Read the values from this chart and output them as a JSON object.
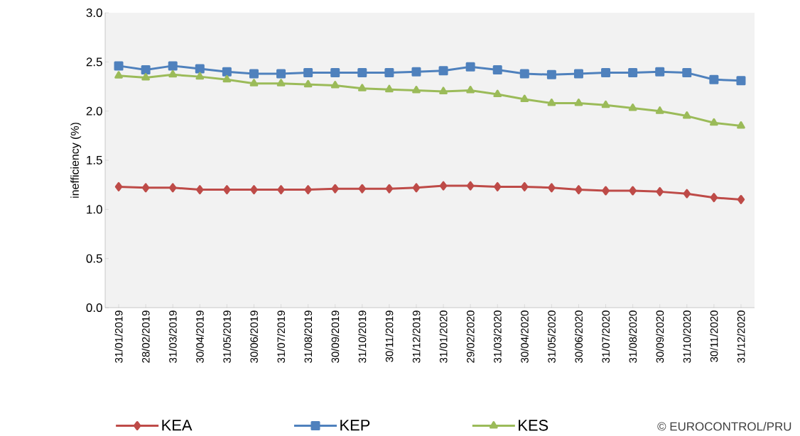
{
  "chart_data": {
    "type": "line",
    "ylabel": "inefficiency (%)",
    "categories": [
      "31/01/2019",
      "28/02/2019",
      "31/03/2019",
      "30/04/2019",
      "31/05/2019",
      "30/06/2019",
      "31/07/2019",
      "31/08/2019",
      "30/09/2019",
      "31/10/2019",
      "30/11/2019",
      "31/12/2019",
      "31/01/2020",
      "29/02/2020",
      "31/03/2020",
      "30/04/2020",
      "31/05/2020",
      "30/06/2020",
      "31/07/2020",
      "31/08/2020",
      "30/09/2020",
      "31/10/2020",
      "30/11/2020",
      "31/12/2020"
    ],
    "series": [
      {
        "name": "KEA",
        "color": "#be4b48",
        "marker": "diamond",
        "values": [
          1.23,
          1.22,
          1.22,
          1.2,
          1.2,
          1.2,
          1.2,
          1.2,
          1.21,
          1.21,
          1.21,
          1.22,
          1.24,
          1.24,
          1.23,
          1.23,
          1.22,
          1.2,
          1.19,
          1.19,
          1.18,
          1.16,
          1.12,
          1.1
        ]
      },
      {
        "name": "KEP",
        "color": "#4f81bd",
        "marker": "square",
        "values": [
          2.46,
          2.42,
          2.46,
          2.43,
          2.4,
          2.38,
          2.38,
          2.39,
          2.39,
          2.39,
          2.39,
          2.4,
          2.41,
          2.45,
          2.42,
          2.38,
          2.37,
          2.38,
          2.39,
          2.39,
          2.4,
          2.39,
          2.32,
          2.31
        ]
      },
      {
        "name": "KES",
        "color": "#9bbb59",
        "marker": "triangle",
        "values": [
          2.36,
          2.34,
          2.37,
          2.35,
          2.32,
          2.28,
          2.28,
          2.27,
          2.26,
          2.23,
          2.22,
          2.21,
          2.2,
          2.21,
          2.17,
          2.12,
          2.08,
          2.08,
          2.06,
          2.03,
          2.0,
          1.95,
          1.88,
          1.85
        ]
      }
    ],
    "ylim": [
      0,
      3
    ],
    "yticks": [
      {
        "value": 0,
        "label": "0.0"
      },
      {
        "value": 0.5,
        "label": "0.5"
      },
      {
        "value": 1,
        "label": "1.0"
      },
      {
        "value": 1.5,
        "label": "1.5"
      },
      {
        "value": 2,
        "label": "2.0"
      },
      {
        "value": 2.5,
        "label": "2.5"
      },
      {
        "value": 3,
        "label": "3.0"
      }
    ],
    "legend": "bottom",
    "grid": false,
    "line_style": "solid",
    "annotations": [
      "© EUROCONTROL/PRU"
    ]
  }
}
